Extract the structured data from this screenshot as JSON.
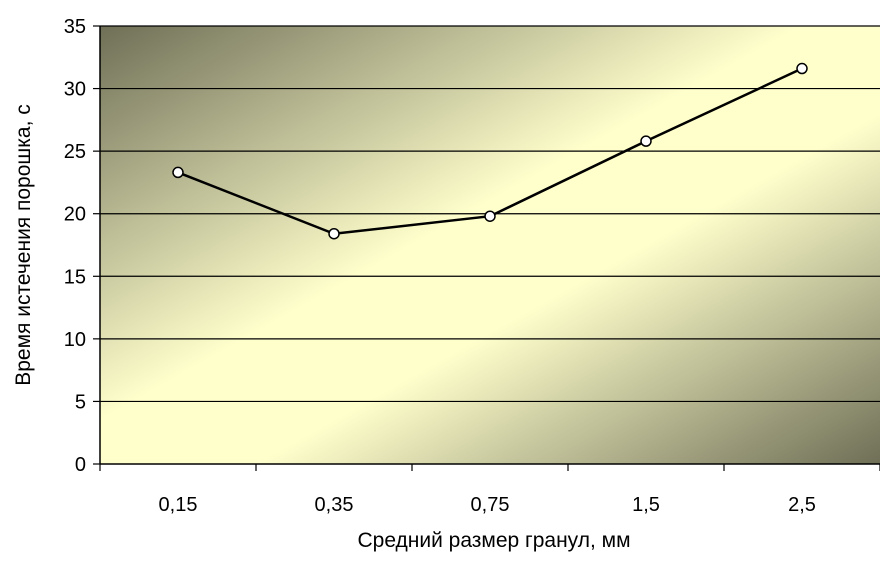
{
  "chart_data": {
    "type": "line",
    "title": "",
    "xlabel": "Средний размер гранул, мм",
    "ylabel": "Время истечения порошка, с",
    "categories": [
      "0,15",
      "0,35",
      "0,75",
      "1,5",
      "2,5"
    ],
    "series": [
      {
        "values": [
          23.3,
          18.4,
          19.8,
          25.8,
          31.6
        ]
      }
    ],
    "ylim": [
      0,
      35
    ],
    "yticks": [
      "0",
      "5",
      "10",
      "15",
      "20",
      "25",
      "30",
      "35"
    ],
    "grid": "horizontal",
    "legend": "none",
    "colors": {
      "line": "#000000",
      "marker_fill": "#ffffff",
      "gradient_dark": "#6f6f57",
      "gradient_light": "#ffffcc"
    }
  }
}
